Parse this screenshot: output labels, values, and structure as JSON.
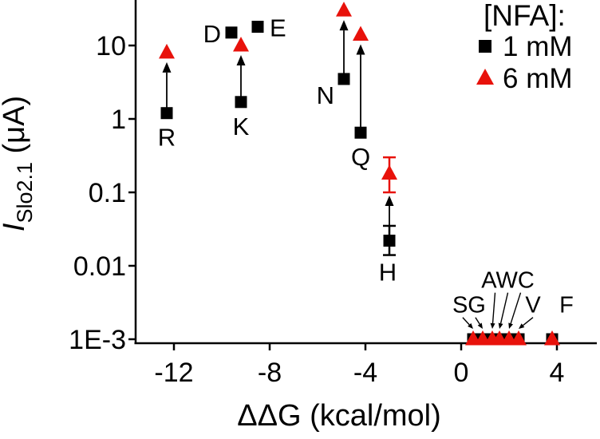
{
  "chart_data": {
    "type": "scatter",
    "title": "",
    "xlabel": "ΔΔG (kcal/mol)",
    "ylabel_text": "I_Slo2.1 (μA)",
    "ylabel": {
      "italic": "I",
      "sub": "Slo2.1",
      "rest": " (μA)"
    },
    "y_scale": "log",
    "xlim": [
      -13.6,
      5.5
    ],
    "ylim": [
      0.001,
      42
    ],
    "grid": false,
    "x_ticks": [
      {
        "v": -12,
        "label": "-12"
      },
      {
        "v": -8,
        "label": "-8"
      },
      {
        "v": -4,
        "label": "-4"
      },
      {
        "v": 0,
        "label": "0"
      },
      {
        "v": 4,
        "label": "4"
      }
    ],
    "y_ticks": [
      {
        "v": 10,
        "label": "10"
      },
      {
        "v": 1,
        "label": "1"
      },
      {
        "v": 0.1,
        "label": "0.1"
      },
      {
        "v": 0.01,
        "label": "0.01"
      },
      {
        "v": 0.001,
        "label": "1E-3"
      }
    ],
    "legend": {
      "position": "top-right",
      "title": "[NFA]:",
      "entries": [
        {
          "marker": "square",
          "color": "#000000",
          "label": "1 mM"
        },
        {
          "marker": "triangle",
          "color": "#e8120b",
          "label": "6 mM"
        }
      ]
    },
    "series": [
      {
        "name": "1 mM",
        "marker": "square",
        "color": "#000000",
        "points": [
          {
            "label": "R",
            "x": -12.3,
            "y": 1.2,
            "placement": "below"
          },
          {
            "label": "D",
            "x": -9.6,
            "y": 15,
            "placement": "left"
          },
          {
            "label": "E",
            "x": -8.5,
            "y": 18,
            "placement": "right"
          },
          {
            "label": "K",
            "x": -9.2,
            "y": 1.7,
            "placement": "below"
          },
          {
            "label": "N",
            "x": -4.9,
            "y": 3.5,
            "placement": "left-below"
          },
          {
            "label": "Q",
            "x": -4.2,
            "y": 0.65,
            "placement": "below"
          },
          {
            "label": "H",
            "x": -3.0,
            "y": 0.022,
            "err": [
              0.014,
              0.035
            ],
            "placement": "below2"
          },
          {
            "label": "S",
            "x": 0.5,
            "y": 0.001,
            "placement": "none"
          },
          {
            "label": "G",
            "x": 0.9,
            "y": 0.001,
            "placement": "none"
          },
          {
            "label": "A",
            "x": 1.3,
            "y": 0.001,
            "placement": "none"
          },
          {
            "label": "W",
            "x": 1.6,
            "y": 0.001,
            "placement": "none"
          },
          {
            "label": "C",
            "x": 2.0,
            "y": 0.001,
            "placement": "none"
          },
          {
            "label": "V",
            "x": 2.4,
            "y": 0.001,
            "placement": "none"
          },
          {
            "label": "F",
            "x": 3.8,
            "y": 0.001,
            "placement": "none"
          }
        ]
      },
      {
        "name": "6 mM",
        "marker": "triangle",
        "color": "#e8120b",
        "points": [
          {
            "label": "R",
            "x": -12.3,
            "y": 8
          },
          {
            "label": "K",
            "x": -9.2,
            "y": 10
          },
          {
            "label": "N",
            "x": -4.9,
            "y": 30
          },
          {
            "label": "Q",
            "x": -4.2,
            "y": 14
          },
          {
            "label": "H",
            "x": -3.0,
            "y": 0.18,
            "err": [
              0.1,
              0.3
            ]
          },
          {
            "label": "S",
            "x": 0.5,
            "y": 0.001
          },
          {
            "label": "G",
            "x": 0.9,
            "y": 0.001
          },
          {
            "label": "A",
            "x": 1.3,
            "y": 0.001
          },
          {
            "label": "W",
            "x": 1.6,
            "y": 0.001
          },
          {
            "label": "C",
            "x": 2.0,
            "y": 0.001
          },
          {
            "label": "V",
            "x": 2.4,
            "y": 0.001
          },
          {
            "label": "F",
            "x": 3.8,
            "y": 0.001
          }
        ]
      }
    ],
    "arrows": {
      "color": "#000000",
      "direction": "1mM-to-6mM",
      "pairs": [
        "R",
        "K",
        "N",
        "Q",
        "H"
      ]
    },
    "annotations": [
      {
        "text": "SG",
        "x": 0.33,
        "y": 0.0023,
        "targets": [
          "S",
          "G"
        ]
      },
      {
        "text": "AWC",
        "x": 1.95,
        "y": 0.005,
        "targets": [
          "A",
          "W",
          "C"
        ]
      },
      {
        "text": "V",
        "x": 3.0,
        "y": 0.0023,
        "targets": [
          "V"
        ]
      },
      {
        "text": "F",
        "x": 4.4,
        "y": 0.0023,
        "targets": []
      }
    ]
  }
}
